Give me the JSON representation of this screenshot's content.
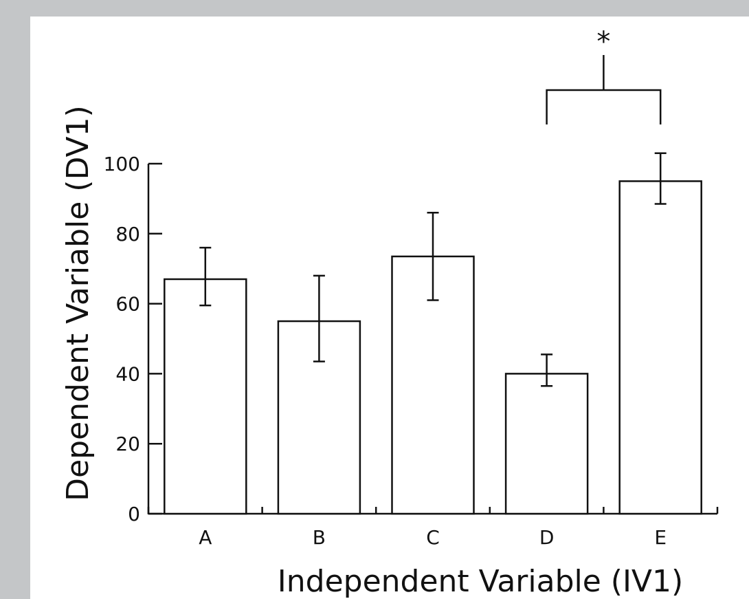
{
  "chart_data": {
    "type": "bar",
    "title": "",
    "xlabel": "Independent Variable (IV1)",
    "ylabel": "Dependent Variable (DV1)",
    "categories": [
      "A",
      "B",
      "C",
      "D",
      "E"
    ],
    "values": [
      67,
      55,
      73.5,
      40,
      95
    ],
    "error_high": [
      76,
      68,
      86,
      45.5,
      103
    ],
    "error_low": [
      59.5,
      43.5,
      61,
      36.5,
      88.5
    ],
    "ylim": [
      0,
      100
    ],
    "yticks": [
      0,
      20,
      40,
      60,
      80,
      100
    ],
    "grid": false,
    "annotations": [
      {
        "from": "D",
        "to": "E",
        "label": "*"
      }
    ],
    "colors": {
      "bar_fill": "#ffffff",
      "stroke": "#111111",
      "background": "#c4c6c8"
    }
  }
}
